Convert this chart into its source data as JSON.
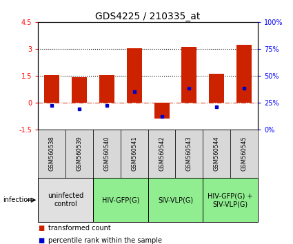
{
  "title": "GDS4225 / 210335_at",
  "samples": [
    "GSM560538",
    "GSM560539",
    "GSM560540",
    "GSM560541",
    "GSM560542",
    "GSM560543",
    "GSM560544",
    "GSM560545"
  ],
  "transformed_counts": [
    1.52,
    1.42,
    1.52,
    3.02,
    -0.88,
    3.1,
    1.6,
    3.22
  ],
  "percentile_ranks": [
    22,
    19,
    22,
    35,
    12,
    38,
    21,
    38
  ],
  "ylim_left": [
    -1.5,
    4.5
  ],
  "ylim_right": [
    0,
    100
  ],
  "yticks_left": [
    -1.5,
    0,
    1.5,
    3,
    4.5
  ],
  "yticks_right": [
    0,
    25,
    50,
    75,
    100
  ],
  "yticklabels_left": [
    "-1.5",
    "0",
    "1.5",
    "3",
    "4.5"
  ],
  "yticklabels_right": [
    "0%",
    "25%",
    "50%",
    "75%",
    "100%"
  ],
  "hlines_dotted": [
    1.5,
    3.0
  ],
  "hline_dashed": 0.0,
  "bar_color": "#cc2200",
  "dot_color": "#0000cc",
  "bar_width": 0.55,
  "group_defs": [
    {
      "indices": [
        0,
        1
      ],
      "label": "uninfected\ncontrol",
      "color": "#e0e0e0"
    },
    {
      "indices": [
        2,
        3
      ],
      "label": "HIV-GFP(G)",
      "color": "#90ee90"
    },
    {
      "indices": [
        4,
        5
      ],
      "label": "SIV-VLP(G)",
      "color": "#90ee90"
    },
    {
      "indices": [
        6,
        7
      ],
      "label": "HIV-GFP(G) +\nSIV-VLP(G)",
      "color": "#90ee90"
    }
  ],
  "infection_label": "infection",
  "legend_red": "transformed count",
  "legend_blue": "percentile rank within the sample",
  "title_fontsize": 10,
  "tick_fontsize": 7,
  "sample_fontsize": 6,
  "group_fontsize": 7,
  "legend_fontsize": 7
}
